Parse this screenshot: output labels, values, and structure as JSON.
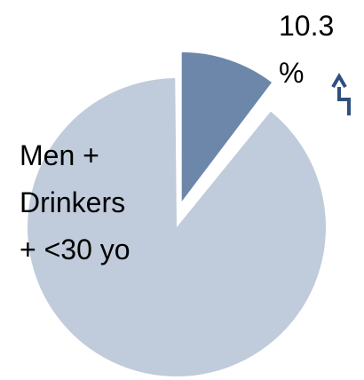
{
  "chart_data": {
    "type": "pie",
    "slices": [
      {
        "label": "Men + Drinkers + <30 yo",
        "value": 89.7,
        "color": "#c0cbdb",
        "exploded": false
      },
      {
        "label": "10.3 %",
        "value": 10.3,
        "color": "#6c87aa",
        "exploded": true
      }
    ],
    "labels": {
      "main": [
        "Men +",
        "Drinkers",
        "+ <30 yo"
      ],
      "small": [
        "10.3",
        "%"
      ]
    },
    "arrow_color": "#2f4f7f"
  }
}
